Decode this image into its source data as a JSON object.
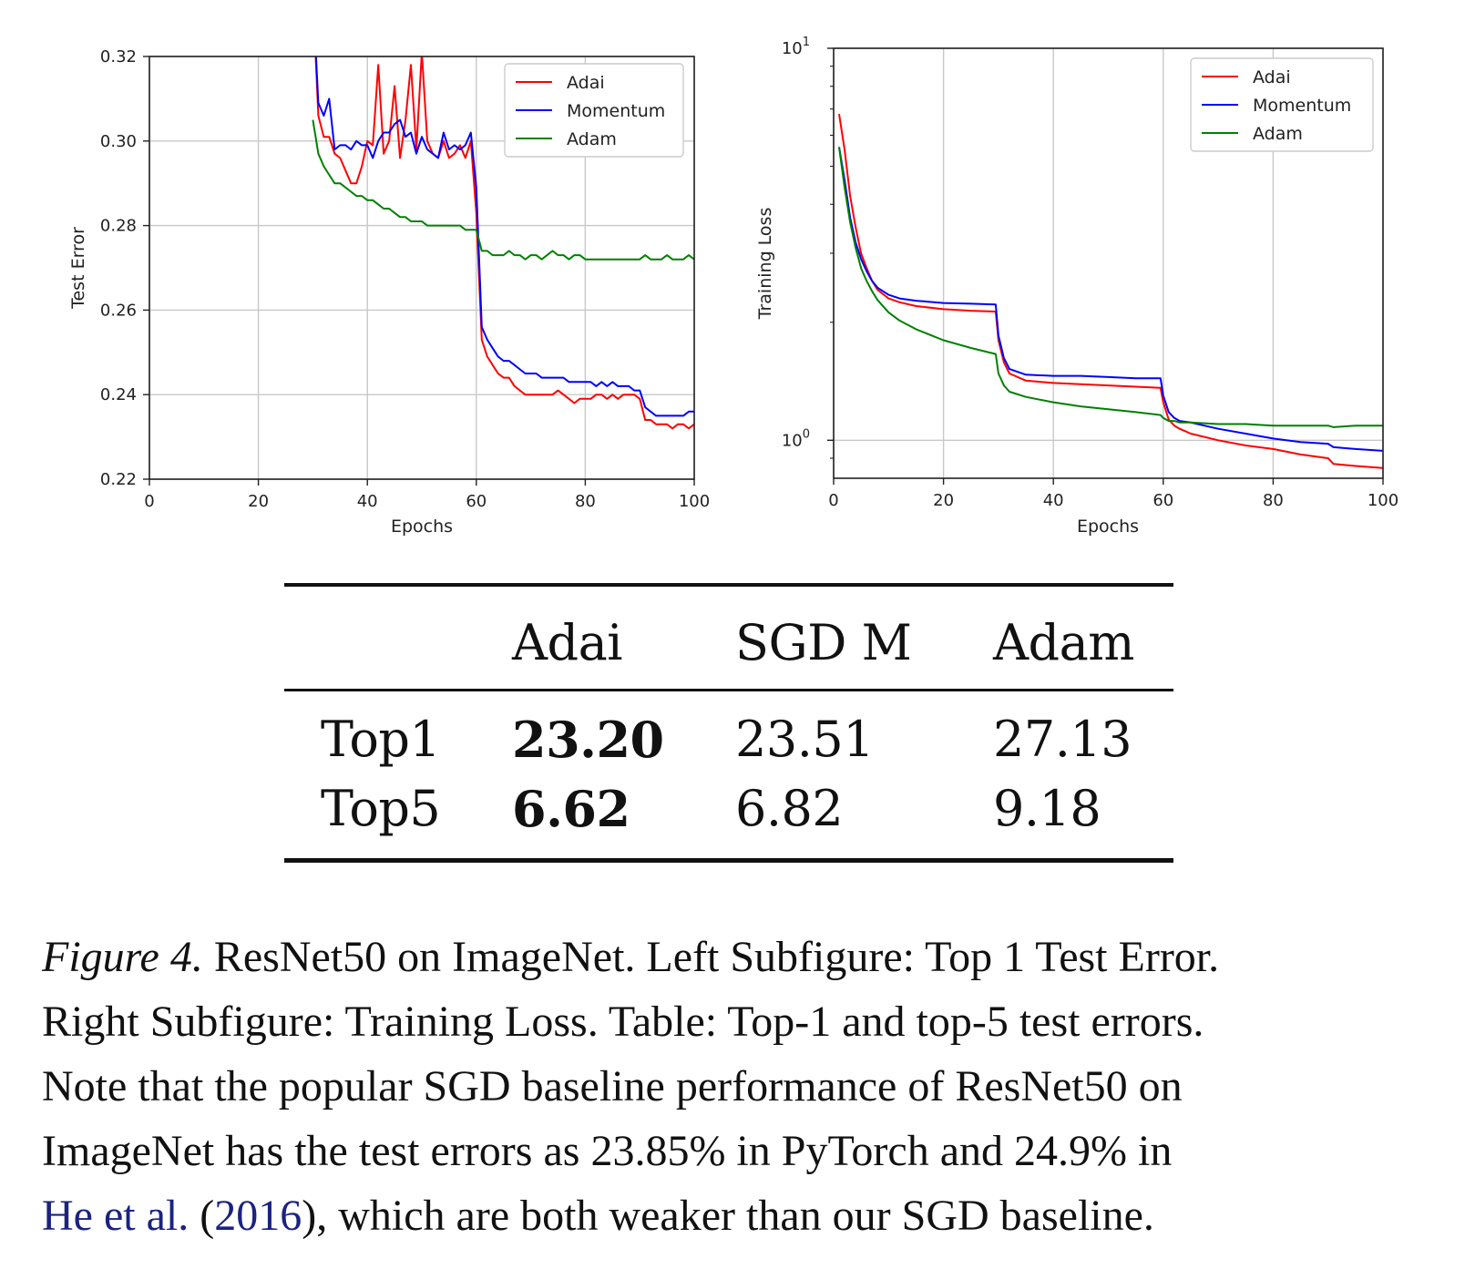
{
  "chart_data": [
    {
      "type": "line",
      "xlabel": "Epochs",
      "ylabel": "Test Error",
      "xlim": [
        0,
        100
      ],
      "ylim": [
        0.22,
        0.32
      ],
      "xticks": [
        "0",
        "20",
        "40",
        "60",
        "80",
        "100"
      ],
      "yticks": [
        "0.22",
        "0.24",
        "0.26",
        "0.28",
        "0.30",
        "0.32"
      ],
      "grid": true,
      "legend_position": "top-right",
      "series": [
        {
          "name": "Adai",
          "color": "#ff0000",
          "x": [
            30,
            31,
            32,
            33,
            34,
            35,
            36,
            37,
            38,
            39,
            40,
            41,
            42,
            43,
            44,
            45,
            46,
            47,
            48,
            49,
            50,
            51,
            52,
            53,
            54,
            55,
            56,
            57,
            58,
            59,
            60,
            61,
            62,
            63,
            64,
            65,
            66,
            67,
            68,
            69,
            70,
            71,
            72,
            73,
            74,
            75,
            76,
            77,
            78,
            79,
            80,
            81,
            82,
            83,
            84,
            85,
            86,
            87,
            88,
            89,
            90,
            91,
            92,
            93,
            94,
            95,
            96,
            97,
            98,
            99,
            100
          ],
          "y": [
            0.335,
            0.306,
            0.301,
            0.301,
            0.297,
            0.296,
            0.293,
            0.29,
            0.29,
            0.294,
            0.3,
            0.299,
            0.318,
            0.297,
            0.3,
            0.313,
            0.296,
            0.305,
            0.318,
            0.298,
            0.321,
            0.3,
            0.297,
            0.296,
            0.3,
            0.296,
            0.297,
            0.299,
            0.296,
            0.3,
            0.283,
            0.253,
            0.249,
            0.247,
            0.245,
            0.244,
            0.244,
            0.242,
            0.241,
            0.24,
            0.24,
            0.24,
            0.24,
            0.24,
            0.24,
            0.241,
            0.24,
            0.239,
            0.238,
            0.239,
            0.239,
            0.239,
            0.24,
            0.24,
            0.239,
            0.24,
            0.239,
            0.24,
            0.24,
            0.24,
            0.239,
            0.234,
            0.234,
            0.233,
            0.233,
            0.233,
            0.232,
            0.233,
            0.233,
            0.232,
            0.233
          ]
        },
        {
          "name": "Momentum",
          "color": "#0000ff",
          "x": [
            30,
            31,
            32,
            33,
            34,
            35,
            36,
            37,
            38,
            39,
            40,
            41,
            42,
            43,
            44,
            45,
            46,
            47,
            48,
            49,
            50,
            51,
            52,
            53,
            54,
            55,
            56,
            57,
            58,
            59,
            60,
            61,
            62,
            63,
            64,
            65,
            66,
            67,
            68,
            69,
            70,
            71,
            72,
            73,
            74,
            75,
            76,
            77,
            78,
            79,
            80,
            81,
            82,
            83,
            84,
            85,
            86,
            87,
            88,
            89,
            90,
            91,
            92,
            93,
            94,
            95,
            96,
            97,
            98,
            99,
            100
          ],
          "y": [
            0.335,
            0.309,
            0.306,
            0.31,
            0.298,
            0.299,
            0.299,
            0.298,
            0.3,
            0.299,
            0.299,
            0.296,
            0.3,
            0.302,
            0.302,
            0.304,
            0.305,
            0.301,
            0.302,
            0.297,
            0.301,
            0.298,
            0.297,
            0.296,
            0.302,
            0.298,
            0.299,
            0.298,
            0.299,
            0.302,
            0.289,
            0.256,
            0.253,
            0.251,
            0.249,
            0.248,
            0.248,
            0.247,
            0.246,
            0.245,
            0.245,
            0.245,
            0.244,
            0.244,
            0.244,
            0.244,
            0.244,
            0.243,
            0.243,
            0.243,
            0.243,
            0.243,
            0.242,
            0.243,
            0.242,
            0.243,
            0.242,
            0.242,
            0.242,
            0.241,
            0.241,
            0.237,
            0.236,
            0.235,
            0.235,
            0.235,
            0.235,
            0.235,
            0.235,
            0.236,
            0.236
          ]
        },
        {
          "name": "Adam",
          "color": "#008000",
          "x": [
            30,
            31,
            32,
            33,
            34,
            35,
            36,
            37,
            38,
            39,
            40,
            41,
            42,
            43,
            44,
            45,
            46,
            47,
            48,
            49,
            50,
            51,
            52,
            53,
            54,
            55,
            56,
            57,
            58,
            59,
            60,
            61,
            62,
            63,
            64,
            65,
            66,
            67,
            68,
            69,
            70,
            71,
            72,
            73,
            74,
            75,
            76,
            77,
            78,
            79,
            80,
            81,
            82,
            83,
            84,
            85,
            86,
            87,
            88,
            89,
            90,
            91,
            92,
            93,
            94,
            95,
            96,
            97,
            98,
            99,
            100
          ],
          "y": [
            0.305,
            0.297,
            0.294,
            0.292,
            0.29,
            0.29,
            0.289,
            0.288,
            0.287,
            0.287,
            0.286,
            0.286,
            0.285,
            0.284,
            0.284,
            0.283,
            0.282,
            0.282,
            0.281,
            0.281,
            0.281,
            0.28,
            0.28,
            0.28,
            0.28,
            0.28,
            0.28,
            0.28,
            0.279,
            0.279,
            0.279,
            0.274,
            0.274,
            0.273,
            0.273,
            0.273,
            0.274,
            0.273,
            0.273,
            0.272,
            0.273,
            0.273,
            0.272,
            0.273,
            0.274,
            0.273,
            0.273,
            0.272,
            0.273,
            0.273,
            0.272,
            0.272,
            0.272,
            0.272,
            0.272,
            0.272,
            0.272,
            0.272,
            0.272,
            0.272,
            0.272,
            0.273,
            0.272,
            0.272,
            0.272,
            0.273,
            0.272,
            0.272,
            0.272,
            0.273,
            0.272
          ]
        }
      ]
    },
    {
      "type": "line",
      "xlabel": "Epochs",
      "ylabel": "Training Loss",
      "xlim": [
        0,
        100
      ],
      "ylim": [
        0.8,
        10
      ],
      "yscale": "log",
      "xticks": [
        "0",
        "20",
        "40",
        "60",
        "80",
        "100"
      ],
      "yticks_base": "10",
      "yticks_exp": [
        "0",
        "1"
      ],
      "grid": true,
      "legend_position": "top-right",
      "series": [
        {
          "name": "Adai",
          "color": "#ff0000",
          "x": [
            1,
            2,
            3,
            4,
            5,
            6,
            7,
            8,
            10,
            12,
            15,
            20,
            25,
            29.5,
            30,
            31,
            32,
            35,
            40,
            45,
            50,
            55,
            59.5,
            60,
            61,
            62,
            63,
            65,
            70,
            75,
            80,
            85,
            90,
            91,
            95,
            100
          ],
          "y": [
            6.8,
            5.5,
            4.2,
            3.5,
            3.0,
            2.75,
            2.55,
            2.42,
            2.3,
            2.25,
            2.2,
            2.16,
            2.14,
            2.13,
            1.8,
            1.58,
            1.48,
            1.42,
            1.4,
            1.39,
            1.38,
            1.37,
            1.36,
            1.25,
            1.13,
            1.09,
            1.07,
            1.04,
            1.0,
            0.97,
            0.95,
            0.92,
            0.9,
            0.87,
            0.86,
            0.85
          ]
        },
        {
          "name": "Momentum",
          "color": "#0000ff",
          "x": [
            1,
            2,
            3,
            4,
            5,
            6,
            7,
            8,
            10,
            12,
            15,
            20,
            25,
            29.5,
            30,
            31,
            32,
            35,
            40,
            45,
            50,
            55,
            59.5,
            60,
            61,
            62,
            63,
            65,
            70,
            75,
            80,
            85,
            90,
            91,
            95,
            100
          ],
          "y": [
            5.6,
            4.6,
            3.7,
            3.2,
            2.9,
            2.7,
            2.55,
            2.45,
            2.35,
            2.3,
            2.27,
            2.24,
            2.23,
            2.22,
            1.85,
            1.62,
            1.52,
            1.47,
            1.46,
            1.46,
            1.45,
            1.44,
            1.44,
            1.3,
            1.18,
            1.14,
            1.12,
            1.11,
            1.07,
            1.04,
            1.01,
            0.99,
            0.98,
            0.96,
            0.95,
            0.94
          ]
        },
        {
          "name": "Adam",
          "color": "#008000",
          "x": [
            1,
            2,
            3,
            4,
            5,
            6,
            7,
            8,
            10,
            12,
            15,
            20,
            25,
            29.5,
            30,
            31,
            32,
            35,
            40,
            45,
            50,
            55,
            59.5,
            60,
            61,
            62,
            63,
            65,
            70,
            75,
            80,
            85,
            90,
            91,
            95,
            100
          ],
          "y": [
            5.6,
            4.4,
            3.6,
            3.1,
            2.75,
            2.55,
            2.4,
            2.28,
            2.12,
            2.02,
            1.92,
            1.8,
            1.72,
            1.66,
            1.48,
            1.38,
            1.33,
            1.29,
            1.25,
            1.22,
            1.2,
            1.18,
            1.16,
            1.14,
            1.12,
            1.12,
            1.11,
            1.11,
            1.1,
            1.1,
            1.09,
            1.09,
            1.09,
            1.08,
            1.09,
            1.09
          ]
        }
      ]
    }
  ],
  "table": {
    "header": [
      "",
      "Adai",
      "SGD M",
      "Adam"
    ],
    "rows": [
      {
        "label": "Top1",
        "adai": "23.20",
        "sgdm": "23.51",
        "adam": "27.13"
      },
      {
        "label": "Top5",
        "adai": "6.62",
        "sgdm": "6.82",
        "adam": "9.18"
      }
    ]
  },
  "caption": {
    "fig_label": "Figure 4.",
    "line1_rest": " ResNet50 on ImageNet. Left Subfigure: Top 1 Test Error.",
    "line2": "Right Subfigure: Training Loss. Table: Top-1 and top-5 test errors.",
    "line3": "Note that the popular SGD baseline performance of ResNet50 on",
    "line4": "ImageNet has the test errors as 23.85% in PyTorch and 24.9% in",
    "line5_cite": "He et al.",
    "line5_sp": " (",
    "line5_year": "2016",
    "line5_rest": "), which are both weaker than our SGD baseline."
  }
}
